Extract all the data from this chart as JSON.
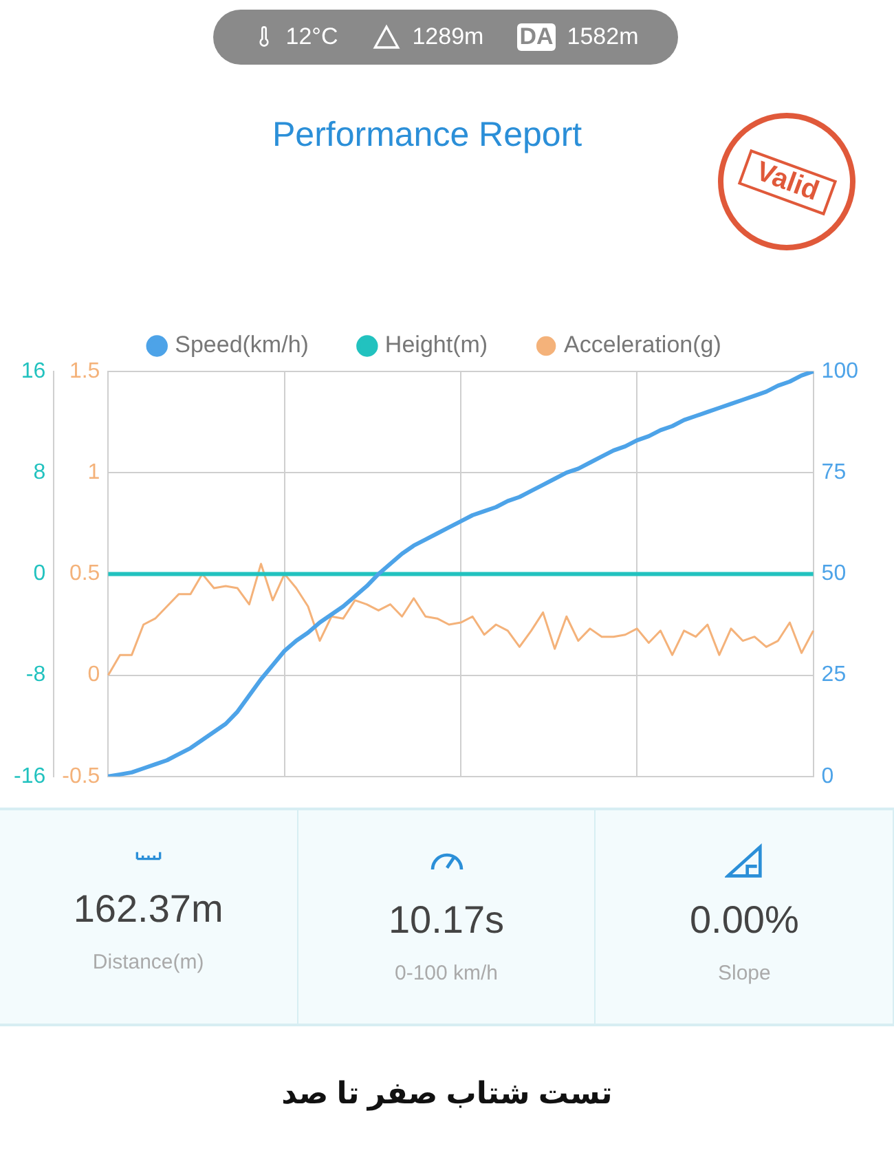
{
  "chart_data": {
    "type": "line",
    "title": "Performance Report",
    "annotations": [
      "12°C",
      "1289m",
      "DA",
      "1582m",
      "Valid",
      "162.37m",
      "Distance(m)",
      "10.17s",
      "0-100 km/h",
      "0.00%",
      "Slope",
      "تست شتاب صفر تا صد"
    ],
    "categories": [
      null,
      null,
      null,
      null,
      null,
      null,
      null,
      null,
      null,
      null,
      null,
      null,
      null,
      null,
      null,
      null,
      null,
      null,
      null,
      null,
      null,
      null,
      null,
      null,
      null,
      null,
      null,
      null,
      null,
      null,
      null,
      null,
      null,
      null,
      null,
      null,
      null,
      null,
      null,
      null,
      null,
      null,
      null,
      null,
      null,
      null,
      null,
      null,
      null,
      null,
      null,
      null,
      null,
      null,
      null,
      null,
      null,
      null,
      null,
      null,
      null
    ],
    "series": [
      {
        "name": "Speed(km/h)",
        "color": "#4da3e8",
        "axis": "y2",
        "values": [
          0,
          0.5,
          1,
          2,
          3,
          4,
          5.5,
          7,
          9,
          11,
          13,
          16,
          20,
          24,
          27.5,
          31,
          33.5,
          35.5,
          38,
          40,
          42,
          44.5,
          47,
          50,
          52.5,
          55,
          57,
          58.5,
          60,
          61.5,
          63,
          64.5,
          65.5,
          66.5,
          68,
          69,
          70.5,
          72,
          73.5,
          75,
          76,
          77.5,
          79,
          80.5,
          81.5,
          83,
          84,
          85.5,
          86.5,
          88,
          89,
          90,
          91,
          92,
          93,
          94,
          95,
          96.5,
          97.5,
          99,
          100
        ]
      },
      {
        "name": "Height(m)",
        "color": "#22c2bf",
        "values": [
          0,
          0,
          0,
          0,
          0,
          0,
          0,
          0,
          0,
          0,
          0,
          0,
          0,
          0,
          0,
          0,
          0,
          0,
          0,
          0,
          0,
          0,
          0,
          0,
          0,
          0,
          0,
          0,
          0,
          0,
          0,
          0,
          0,
          0,
          0,
          0,
          0,
          0,
          0,
          0,
          0,
          0,
          0,
          0,
          0,
          0,
          0,
          0,
          0,
          0,
          0,
          0,
          0,
          0,
          0,
          0,
          0,
          0,
          0,
          0,
          0
        ]
      },
      {
        "name": "Acceleration(g)",
        "color": "#f4b27a",
        "axis": "y3",
        "values": [
          0,
          0.1,
          0.1,
          0.25,
          0.28,
          0.34,
          0.4,
          0.4,
          0.5,
          0.43,
          0.44,
          0.43,
          0.35,
          0.55,
          0.37,
          0.5,
          0.43,
          0.34,
          0.17,
          0.29,
          0.28,
          0.37,
          0.35,
          0.32,
          0.35,
          0.29,
          0.38,
          0.29,
          0.28,
          0.25,
          0.26,
          0.29,
          0.2,
          0.25,
          0.22,
          0.14,
          0.22,
          0.31,
          0.13,
          0.29,
          0.17,
          0.23,
          0.19,
          0.19,
          0.2,
          0.23,
          0.16,
          0.22,
          0.1,
          0.22,
          0.19,
          0.25,
          0.1,
          0.23,
          0.17,
          0.19,
          0.14,
          0.17,
          0.26,
          0.11,
          0.22
        ]
      }
    ],
    "ylim": [
      -16,
      16
    ],
    "yticks": [
      -16,
      -8,
      0,
      8,
      16
    ],
    "y3lim": [
      -0.5,
      1.5
    ],
    "y3ticks": [
      -0.5,
      0,
      0.5,
      1,
      1.5
    ],
    "y2lim": [
      0,
      100
    ],
    "y2ticks": [
      0,
      25,
      50,
      75,
      100
    ],
    "grid": true,
    "legend": "top",
    "marker": "none",
    "line_style": "solid",
    "tick_labels": "y"
  }
}
